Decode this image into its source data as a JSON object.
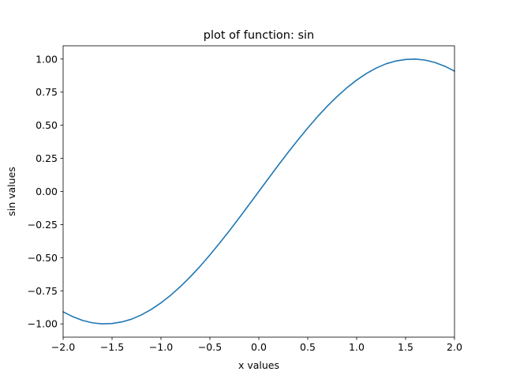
{
  "chart_data": {
    "type": "line",
    "title": "plot of function: sin",
    "xlabel": "x values",
    "ylabel": "sin values",
    "xlim": [
      -2.0,
      2.0
    ],
    "ylim": [
      -1.1,
      1.1
    ],
    "grid": false,
    "x_ticks": [
      -2.0,
      -1.5,
      -1.0,
      -0.5,
      0.0,
      0.5,
      1.0,
      1.5,
      2.0
    ],
    "x_tick_labels": [
      "−2.0",
      "−1.5",
      "−1.0",
      "−0.5",
      "0.0",
      "0.5",
      "1.0",
      "1.5",
      "2.0"
    ],
    "y_ticks": [
      -1.0,
      -0.75,
      -0.5,
      -0.25,
      0.0,
      0.25,
      0.5,
      0.75,
      1.0
    ],
    "y_tick_labels": [
      "−1.00",
      "−0.75",
      "−0.50",
      "−0.25",
      "0.00",
      "0.25",
      "0.50",
      "0.75",
      "1.00"
    ],
    "series": [
      {
        "name": "sin",
        "color": "#1f77b4",
        "x": [
          -2.0,
          -1.9,
          -1.8,
          -1.7,
          -1.6,
          -1.5,
          -1.4,
          -1.3,
          -1.2,
          -1.1,
          -1.0,
          -0.9,
          -0.8,
          -0.7,
          -0.6,
          -0.5,
          -0.4,
          -0.3,
          -0.2,
          -0.1,
          0.0,
          0.1,
          0.2,
          0.3,
          0.4,
          0.5,
          0.6,
          0.7,
          0.8,
          0.9,
          1.0,
          1.1,
          1.2,
          1.3,
          1.4,
          1.5,
          1.6,
          1.7,
          1.8,
          1.9,
          2.0
        ],
        "y": [
          -0.909,
          -0.946,
          -0.974,
          -0.992,
          -1.0,
          -0.997,
          -0.985,
          -0.964,
          -0.932,
          -0.891,
          -0.841,
          -0.783,
          -0.717,
          -0.644,
          -0.565,
          -0.479,
          -0.389,
          -0.296,
          -0.199,
          -0.1,
          0.0,
          0.1,
          0.199,
          0.296,
          0.389,
          0.479,
          0.565,
          0.644,
          0.717,
          0.783,
          0.841,
          0.891,
          0.932,
          0.964,
          0.985,
          0.997,
          1.0,
          0.992,
          0.974,
          0.946,
          0.909
        ]
      }
    ]
  }
}
